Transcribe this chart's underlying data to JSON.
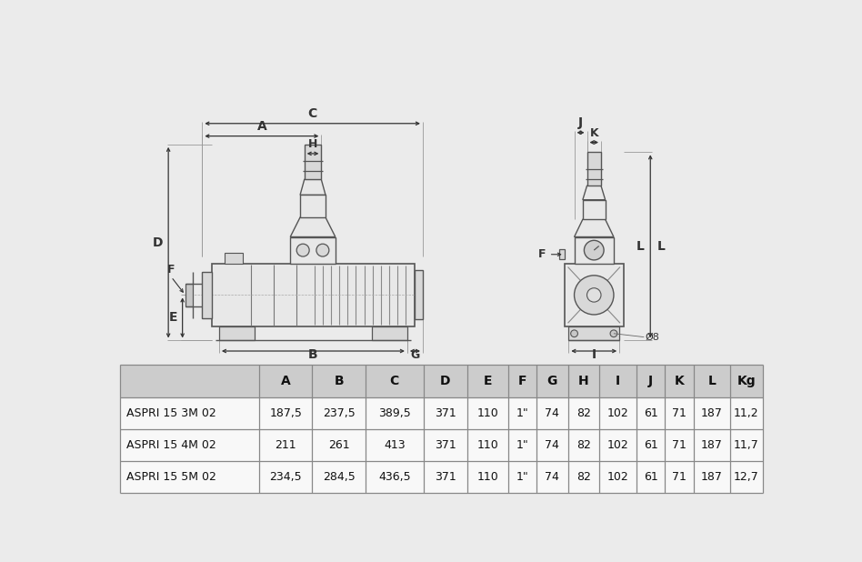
{
  "bg_color": "#ebebeb",
  "table_header": [
    "",
    "A",
    "B",
    "C",
    "D",
    "E",
    "F",
    "G",
    "H",
    "I",
    "J",
    "K",
    "L",
    "Kg"
  ],
  "table_rows": [
    [
      "ASPRI 15 3M 02",
      "187,5",
      "237,5",
      "389,5",
      "371",
      "110",
      "1\"",
      "74",
      "82",
      "102",
      "61",
      "71",
      "187",
      "11,2"
    ],
    [
      "ASPRI 15 4M 02",
      "211",
      "261",
      "413",
      "371",
      "110",
      "1\"",
      "74",
      "82",
      "102",
      "61",
      "71",
      "187",
      "11,7"
    ],
    [
      "ASPRI 15 5M 02",
      "234,5",
      "284,5",
      "436,5",
      "371",
      "110",
      "1\"",
      "74",
      "82",
      "102",
      "61",
      "71",
      "187",
      "12,7"
    ]
  ],
  "lc": "#555555",
  "dc": "#333333",
  "fc_light": "#e8e8e8",
  "fc_mid": "#d8d8d8",
  "fc_dark": "#c8c8c8"
}
